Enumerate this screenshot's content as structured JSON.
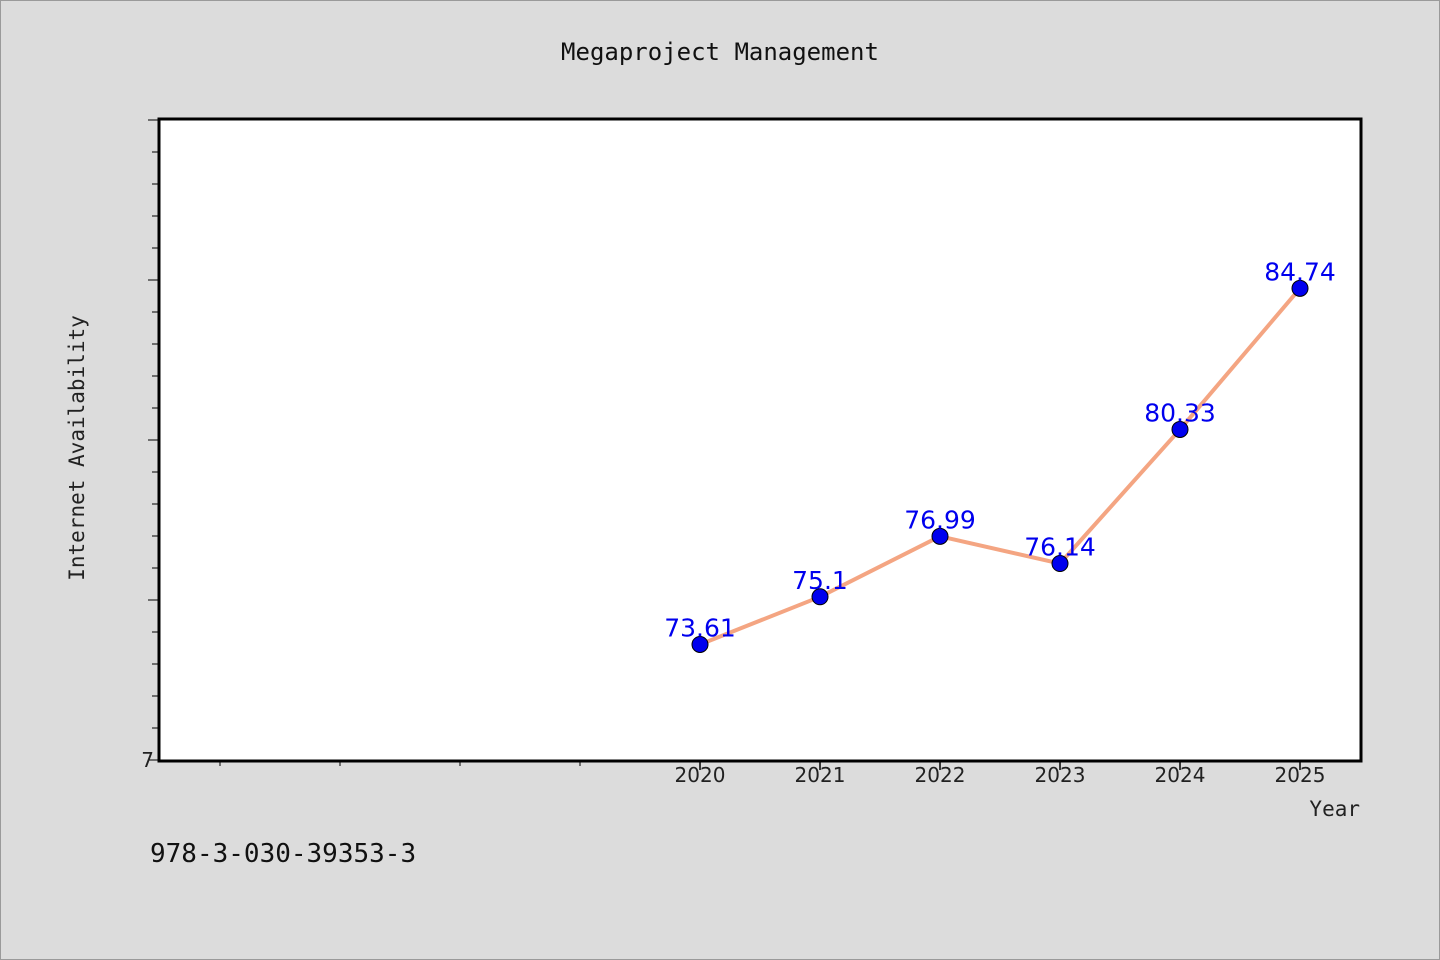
{
  "chart_data": {
    "type": "line",
    "title": "Megaproject Management",
    "xlabel": "Year",
    "ylabel": "Internet Availability",
    "x": [
      2020,
      2021,
      2022,
      2023,
      2024,
      2025
    ],
    "x_tick_labels": [
      "2020",
      "2021",
      "2022",
      "2023",
      "2024",
      "2025"
    ],
    "series": [
      {
        "values": [
          73.61,
          75.1,
          76.99,
          76.14,
          80.33,
          84.74
        ],
        "labels": [
          "73.61",
          "75.1",
          "76.99",
          "76.14",
          "80.33",
          "84.74"
        ]
      }
    ],
    "xlim": [
      2015.5,
      2025.5
    ],
    "ylim": [
      70,
      90
    ],
    "y_tick_labels": [
      "7"
    ],
    "grid": false,
    "colors": {
      "line": "#f4a582",
      "marker": "#0000ee",
      "label": "#0000ee"
    }
  },
  "footer": {
    "isbn": "978-3-030-39353-3"
  }
}
